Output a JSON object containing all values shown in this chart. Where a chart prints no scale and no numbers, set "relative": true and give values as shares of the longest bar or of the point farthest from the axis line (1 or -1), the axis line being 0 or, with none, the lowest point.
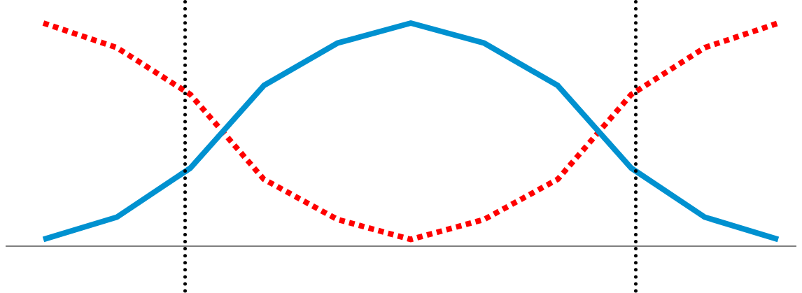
{
  "chart_data": {
    "type": "line",
    "relative": true,
    "legend": false,
    "marker": "none",
    "categories": [
      null,
      null,
      null,
      null,
      null,
      null,
      null,
      null,
      null,
      null,
      null
    ],
    "series": [
      {
        "color": "#0091d0",
        "line_style": "solid",
        "values": [
          0.03,
          0.13,
          0.35,
          0.72,
          0.91,
          1.0,
          0.91,
          0.72,
          0.35,
          0.13,
          0.03
        ]
      },
      {
        "color": "#ff0000",
        "line_style": "dotted",
        "values": [
          1.0,
          0.89,
          0.68,
          0.3,
          0.12,
          0.03,
          0.12,
          0.3,
          0.68,
          0.89,
          1.0
        ]
      }
    ]
  }
}
